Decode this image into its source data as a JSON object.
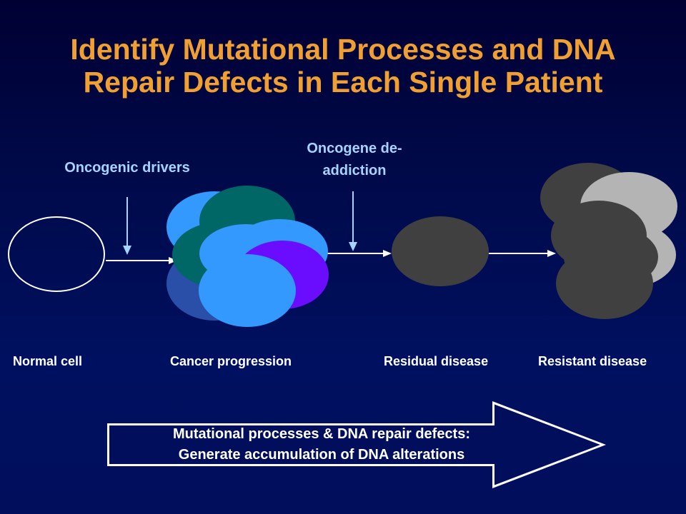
{
  "title": {
    "line1": "Identify Mutational Processes and DNA",
    "line2": "Repair Defects in Each Single Patient"
  },
  "annotations": {
    "oncogenic_drivers": "Oncogenic drivers",
    "oncogene_deaddiction_line1": "Oncogene de-",
    "oncogene_deaddiction_line2": "addiction"
  },
  "stages": {
    "normal": "Normal cell",
    "progression": "Cancer progression",
    "residual": "Residual disease",
    "resistant": "Resistant disease"
  },
  "banner": {
    "line1": "Mutational processes & DNA repair defects:",
    "line2": "Generate accumulation of DNA alterations"
  },
  "colors": {
    "title": "#f0a032",
    "annotation": "#a4d4ff",
    "arrow": "#a4d4ff",
    "clone_light_blue": "#3399ff",
    "clone_teal": "#006666",
    "clone_dark_blue": "#2a4fa8",
    "clone_purple": "#6a0dff",
    "residual_gray": "#404040",
    "resistant_light_gray": "#b4b4b4"
  }
}
